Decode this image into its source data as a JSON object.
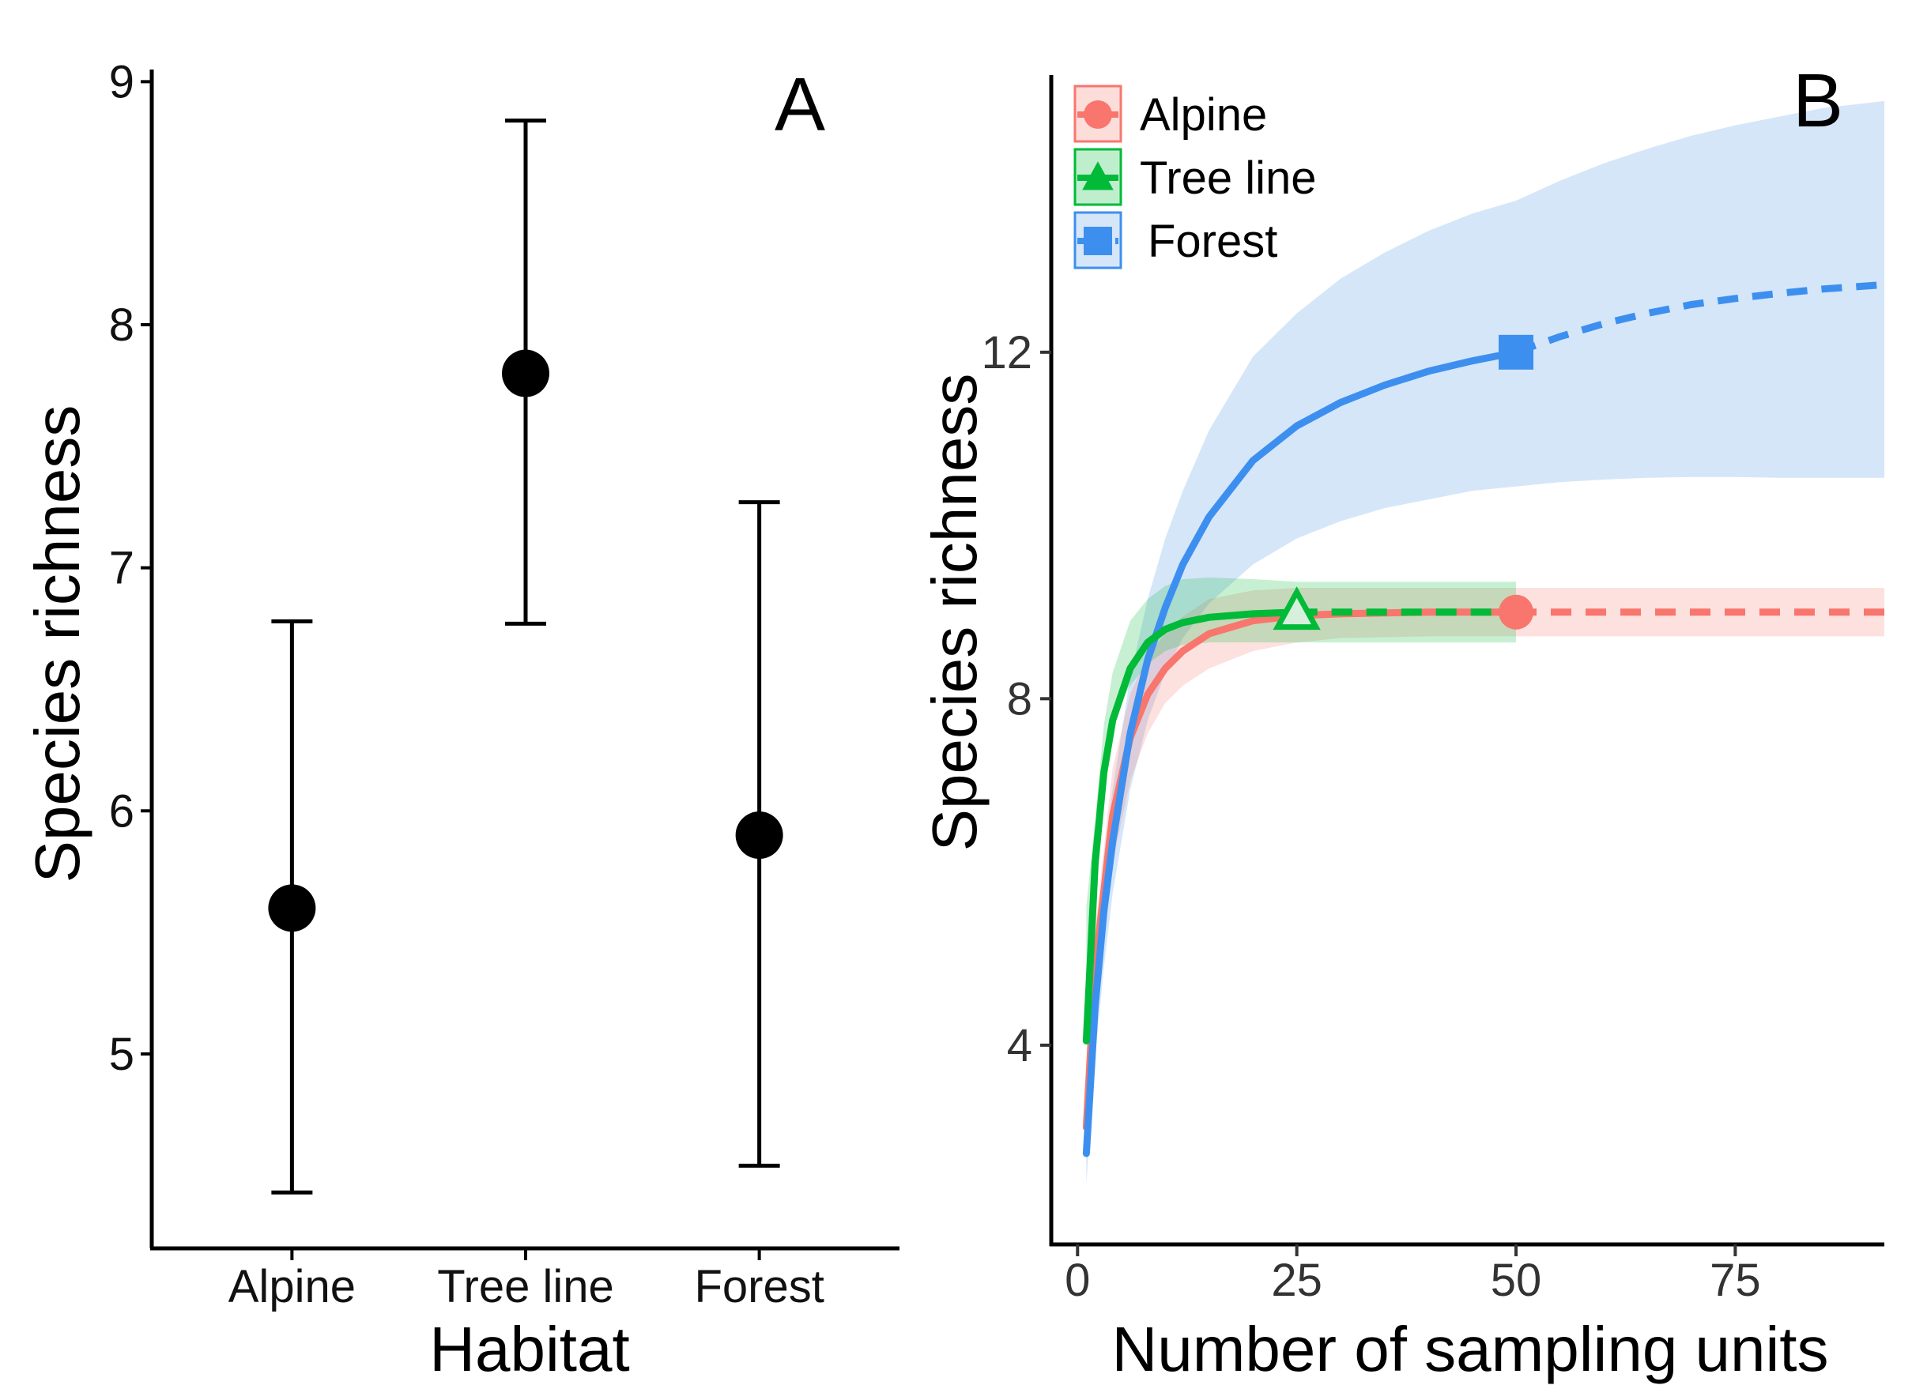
{
  "chart_data": [
    {
      "type": "scatter",
      "panel_label": "A",
      "title": "",
      "xlabel": "Habitat",
      "ylabel": "Species richness",
      "categories": [
        "Alpine",
        "Tree line",
        "Forest"
      ],
      "values": [
        5.6,
        7.8,
        5.9
      ],
      "error_low": [
        4.43,
        6.77,
        4.54
      ],
      "error_high": [
        6.78,
        8.84,
        7.27
      ],
      "ylim": [
        4.2,
        9.05
      ],
      "yticks": [
        5,
        6,
        7,
        8,
        9
      ],
      "point_color": "#000000",
      "grid": false
    },
    {
      "type": "line",
      "panel_label": "B",
      "title": "",
      "xlabel": "Number of sampling units",
      "ylabel": "Species richness",
      "xlim": [
        -3,
        92
      ],
      "ylim": [
        1.7,
        15.2
      ],
      "xticks": [
        0,
        25,
        50,
        75
      ],
      "yticks": [
        4,
        8,
        12
      ],
      "legend_position": "top-left",
      "grid": false,
      "series": [
        {
          "name": "Alpine",
          "color": "#F8766D",
          "marker": "circle",
          "observed_n": 50,
          "observed_richness": 9,
          "interpolated": {
            "x": [
              1,
              2,
              4,
              6,
              8,
              10,
              12,
              15,
              20,
              25,
              30,
              40,
              50
            ],
            "y": [
              3.05,
              4.9,
              6.65,
              7.55,
              8.05,
              8.35,
              8.55,
              8.75,
              8.9,
              8.96,
              8.98,
              9.0,
              9.0
            ]
          },
          "extrapolated": {
            "x": [
              50,
              60,
              70,
              80,
              92
            ],
            "y": [
              9.0,
              9.0,
              9.0,
              9.0,
              9.0
            ]
          },
          "ci_lower": [
            2.8,
            4.45,
            6.1,
            7.05,
            7.6,
            7.95,
            8.15,
            8.35,
            8.55,
            8.65,
            8.7,
            8.72,
            8.72,
            8.72,
            8.72,
            8.72,
            8.72
          ],
          "ci_upper": [
            3.3,
            5.35,
            7.2,
            8.05,
            8.5,
            8.75,
            8.95,
            9.15,
            9.25,
            9.28,
            9.28,
            9.28,
            9.28,
            9.28,
            9.28,
            9.28,
            9.28
          ]
        },
        {
          "name": "Tree line",
          "color": "#00BA38",
          "marker": "triangle",
          "observed_n": 25,
          "observed_richness": 9,
          "interpolated": {
            "x": [
              1,
              2,
              3,
              4,
              6,
              8,
              10,
              12,
              15,
              20,
              25
            ],
            "y": [
              4.05,
              6.1,
              7.15,
              7.75,
              8.35,
              8.65,
              8.8,
              8.88,
              8.94,
              8.98,
              9.0
            ]
          },
          "extrapolated": {
            "x": [
              25,
              30,
              35,
              40,
              45,
              50
            ],
            "y": [
              9.0,
              9.0,
              9.0,
              9.0,
              9.0,
              9.0
            ]
          },
          "ci_lower": [
            3.8,
            5.6,
            6.6,
            7.2,
            7.8,
            8.15,
            8.4,
            8.55,
            8.62,
            8.65,
            8.65,
            8.65,
            8.65,
            8.65,
            8.65,
            8.65,
            8.65
          ],
          "ci_upper": [
            4.3,
            6.6,
            7.7,
            8.3,
            8.9,
            9.15,
            9.3,
            9.38,
            9.4,
            9.38,
            9.35,
            9.35,
            9.35,
            9.35,
            9.35,
            9.35,
            9.35
          ]
        },
        {
          "name": "Forest",
          "color": "#619CFF",
          "line_color": "#3D8FEF",
          "band_color": "#D6E6F9",
          "marker": "square",
          "observed_n": 50,
          "observed_richness": 12,
          "interpolated": {
            "x": [
              1,
              2,
              3,
              4,
              6,
              8,
              10,
              12,
              15,
              20,
              25,
              30,
              35,
              40,
              45,
              50
            ],
            "y": [
              2.75,
              4.45,
              5.55,
              6.35,
              7.6,
              8.45,
              9.05,
              9.55,
              10.1,
              10.75,
              11.15,
              11.42,
              11.62,
              11.78,
              11.9,
              12.0
            ]
          },
          "extrapolated": {
            "x": [
              50,
              55,
              60,
              65,
              70,
              75,
              80,
              85,
              92
            ],
            "y": [
              12.0,
              12.18,
              12.33,
              12.45,
              12.55,
              12.62,
              12.68,
              12.73,
              12.78
            ]
          },
          "ci_lower": [
            2.4,
            3.85,
            4.9,
            5.75,
            6.95,
            7.75,
            8.3,
            8.7,
            9.1,
            9.55,
            9.85,
            10.05,
            10.2,
            10.3,
            10.4,
            10.45,
            10.5,
            10.53,
            10.55,
            10.56,
            10.56,
            10.55,
            10.55,
            10.55
          ],
          "ci_upper": [
            3.1,
            5.05,
            6.2,
            6.95,
            8.25,
            9.15,
            9.85,
            10.4,
            11.1,
            11.95,
            12.45,
            12.85,
            13.15,
            13.4,
            13.6,
            13.75,
            13.98,
            14.18,
            14.35,
            14.5,
            14.62,
            14.72,
            14.82,
            14.9
          ]
        }
      ]
    }
  ]
}
